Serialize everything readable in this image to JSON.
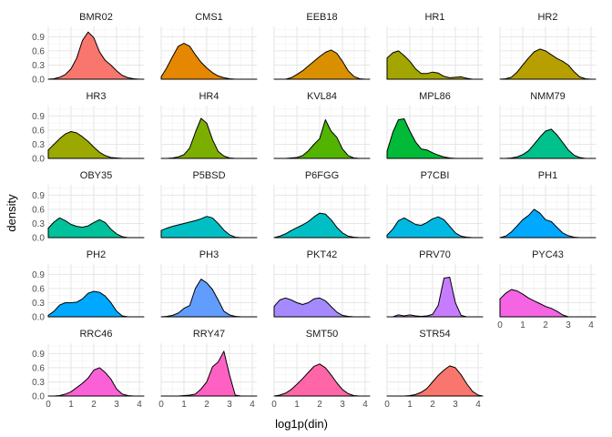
{
  "chart_data": {
    "type": "area",
    "kind": "faceted density plot",
    "xlabel": "log1p(din)",
    "ylabel": "density",
    "xlim": [
      0,
      4.2
    ],
    "ylim": [
      0,
      1.12
    ],
    "x_ticks": [
      0,
      1,
      2,
      3,
      4
    ],
    "y_ticks": [
      0.0,
      0.3,
      0.6,
      0.9
    ],
    "y_tick_labels": [
      "0.0",
      "0.3",
      "0.6",
      "0.9"
    ],
    "grid": true,
    "legend": "none",
    "ncol": 5,
    "x": [
      0,
      0.25,
      0.5,
      0.75,
      1,
      1.25,
      1.5,
      1.75,
      2,
      2.25,
      2.5,
      2.75,
      3,
      3.25,
      3.5,
      3.75,
      4,
      4.2
    ],
    "panels": [
      {
        "name": "BMR02",
        "color": "#F8766D",
        "values": [
          0,
          0.01,
          0.04,
          0.1,
          0.22,
          0.45,
          0.82,
          1.0,
          0.88,
          0.58,
          0.4,
          0.3,
          0.18,
          0.08,
          0.03,
          0.01,
          0,
          0
        ]
      },
      {
        "name": "CMS1",
        "color": "#E58700",
        "values": [
          0.05,
          0.25,
          0.48,
          0.7,
          0.76,
          0.7,
          0.52,
          0.36,
          0.24,
          0.14,
          0.07,
          0.03,
          0.01,
          0,
          0,
          0,
          0,
          0
        ]
      },
      {
        "name": "EEB18",
        "color": "#D89000",
        "values": [
          0,
          0,
          0,
          0.03,
          0.1,
          0.18,
          0.28,
          0.38,
          0.48,
          0.57,
          0.62,
          0.55,
          0.38,
          0.18,
          0.06,
          0.01,
          0,
          0
        ]
      },
      {
        "name": "HR1",
        "color": "#A3A500",
        "values": [
          0.45,
          0.56,
          0.6,
          0.5,
          0.38,
          0.22,
          0.12,
          0.12,
          0.15,
          0.13,
          0.06,
          0.03,
          0.04,
          0.05,
          0.02,
          0,
          0,
          0
        ]
      },
      {
        "name": "HR2",
        "color": "#B79F00",
        "values": [
          0,
          0.01,
          0.04,
          0.15,
          0.3,
          0.45,
          0.58,
          0.64,
          0.6,
          0.52,
          0.44,
          0.38,
          0.3,
          0.16,
          0.05,
          0.01,
          0,
          0
        ]
      },
      {
        "name": "HR3",
        "color": "#9AA800",
        "values": [
          0.18,
          0.3,
          0.42,
          0.52,
          0.57,
          0.54,
          0.46,
          0.36,
          0.24,
          0.13,
          0.06,
          0.02,
          0.01,
          0,
          0,
          0,
          0,
          0
        ]
      },
      {
        "name": "HR4",
        "color": "#7CAE00",
        "values": [
          0,
          0,
          0.01,
          0.03,
          0.08,
          0.22,
          0.55,
          0.85,
          0.75,
          0.4,
          0.15,
          0.05,
          0.01,
          0,
          0,
          0,
          0,
          0
        ]
      },
      {
        "name": "KVL84",
        "color": "#53B400",
        "values": [
          0,
          0,
          0,
          0.01,
          0.02,
          0.06,
          0.16,
          0.3,
          0.42,
          0.82,
          0.58,
          0.45,
          0.2,
          0.06,
          0.01,
          0,
          0,
          0
        ]
      },
      {
        "name": "MPL86",
        "color": "#00BA38",
        "values": [
          0.15,
          0.55,
          0.82,
          0.84,
          0.58,
          0.35,
          0.2,
          0.18,
          0.12,
          0.07,
          0.03,
          0.01,
          0,
          0,
          0,
          0,
          0,
          0
        ]
      },
      {
        "name": "NMM79",
        "color": "#00C08B",
        "values": [
          0,
          0,
          0.01,
          0.03,
          0.08,
          0.16,
          0.3,
          0.45,
          0.58,
          0.62,
          0.5,
          0.34,
          0.18,
          0.07,
          0.02,
          0,
          0,
          0
        ]
      },
      {
        "name": "OBY35",
        "color": "#00C19A",
        "values": [
          0.2,
          0.33,
          0.42,
          0.36,
          0.28,
          0.24,
          0.22,
          0.25,
          0.32,
          0.38,
          0.32,
          0.18,
          0.08,
          0.02,
          0,
          0,
          0,
          0
        ]
      },
      {
        "name": "P5BSD",
        "color": "#00BFC4",
        "values": [
          0.15,
          0.2,
          0.24,
          0.27,
          0.3,
          0.33,
          0.36,
          0.4,
          0.45,
          0.42,
          0.3,
          0.16,
          0.06,
          0.01,
          0,
          0,
          0,
          0
        ]
      },
      {
        "name": "P6FGG",
        "color": "#00BFC4",
        "values": [
          0,
          0.03,
          0.08,
          0.15,
          0.21,
          0.27,
          0.34,
          0.44,
          0.52,
          0.5,
          0.38,
          0.22,
          0.1,
          0.03,
          0.01,
          0,
          0,
          0
        ]
      },
      {
        "name": "P7CBI",
        "color": "#00B9E3",
        "values": [
          0.05,
          0.18,
          0.36,
          0.42,
          0.35,
          0.28,
          0.26,
          0.32,
          0.4,
          0.44,
          0.38,
          0.24,
          0.1,
          0.03,
          0.01,
          0,
          0,
          0
        ]
      },
      {
        "name": "PH1",
        "color": "#00A9FF",
        "values": [
          0,
          0.03,
          0.12,
          0.25,
          0.38,
          0.47,
          0.6,
          0.52,
          0.38,
          0.34,
          0.22,
          0.1,
          0.04,
          0.01,
          0,
          0,
          0,
          0
        ]
      },
      {
        "name": "PH2",
        "color": "#00A9FF",
        "values": [
          0.03,
          0.12,
          0.25,
          0.3,
          0.3,
          0.31,
          0.38,
          0.5,
          0.54,
          0.52,
          0.44,
          0.3,
          0.12,
          0.02,
          0,
          0,
          0,
          0
        ]
      },
      {
        "name": "PH3",
        "color": "#619CFF",
        "values": [
          0,
          0.01,
          0.03,
          0.08,
          0.18,
          0.24,
          0.6,
          0.8,
          0.72,
          0.58,
          0.36,
          0.12,
          0.04,
          0.01,
          0,
          0,
          0,
          0
        ]
      },
      {
        "name": "PKT42",
        "color": "#A58AFF",
        "values": [
          0.22,
          0.36,
          0.4,
          0.36,
          0.3,
          0.26,
          0.3,
          0.38,
          0.4,
          0.34,
          0.22,
          0.1,
          0.03,
          0.01,
          0,
          0,
          0,
          0
        ]
      },
      {
        "name": "PRV70",
        "color": "#C77CFF",
        "values": [
          0,
          0,
          0.04,
          0.02,
          0.04,
          0.02,
          0.01,
          0.02,
          0.05,
          0.25,
          0.82,
          0.84,
          0.3,
          0.03,
          0,
          0,
          0,
          0
        ]
      },
      {
        "name": "PYC43",
        "color": "#F564E3",
        "values": [
          0.38,
          0.5,
          0.58,
          0.55,
          0.48,
          0.4,
          0.34,
          0.28,
          0.22,
          0.18,
          0.12,
          0.04,
          0,
          0,
          0,
          0,
          0,
          0
        ]
      },
      {
        "name": "RRC46",
        "color": "#FB61D7",
        "values": [
          0,
          0,
          0.01,
          0.04,
          0.09,
          0.18,
          0.27,
          0.38,
          0.55,
          0.6,
          0.5,
          0.36,
          0.15,
          0.04,
          0.01,
          0,
          0,
          0
        ]
      },
      {
        "name": "RRY47",
        "color": "#FF61C3",
        "values": [
          0,
          0,
          0,
          0,
          0.01,
          0.02,
          0.04,
          0.15,
          0.3,
          0.62,
          0.72,
          0.95,
          0.45,
          0.02,
          0,
          0,
          0,
          0
        ]
      },
      {
        "name": "SMT50",
        "color": "#FF66A8",
        "values": [
          0,
          0.02,
          0.06,
          0.14,
          0.25,
          0.37,
          0.5,
          0.63,
          0.68,
          0.6,
          0.45,
          0.28,
          0.14,
          0.05,
          0.01,
          0,
          0,
          0
        ]
      },
      {
        "name": "STR54",
        "color": "#F8766D",
        "values": [
          0,
          0,
          0,
          0,
          0.01,
          0.03,
          0.08,
          0.16,
          0.3,
          0.44,
          0.55,
          0.64,
          0.6,
          0.45,
          0.26,
          0.1,
          0.02,
          0
        ]
      }
    ]
  }
}
